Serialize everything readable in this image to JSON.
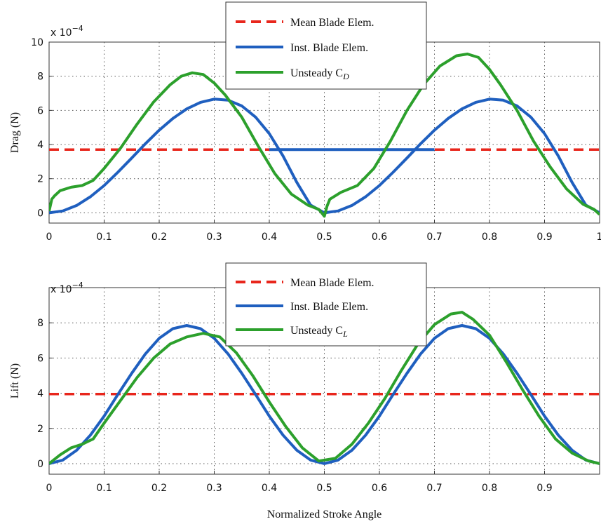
{
  "chart_data": [
    {
      "type": "line",
      "ylabel": "Drag (N)",
      "xlabel": "",
      "exponent": {
        "base": "x 10",
        "power": "−4"
      },
      "xlim": [
        0,
        1
      ],
      "ylim": [
        -0.6,
        10
      ],
      "xticks": [
        0,
        0.1,
        0.2,
        0.3,
        0.4,
        0.5,
        0.6,
        0.7,
        0.8,
        0.9,
        1
      ],
      "xtick_labels": [
        "0",
        "0.1",
        "0.2",
        "0.3",
        "0.4",
        "0.5",
        "0.6",
        "0.7",
        "0.8",
        "0.9",
        "1"
      ],
      "yticks": [
        0,
        2,
        4,
        6,
        8,
        10
      ],
      "ytick_labels": [
        "0",
        "2",
        "4",
        "6",
        "8",
        "10"
      ],
      "grid": true,
      "legend_position": "top-center",
      "legend": [
        {
          "label": "Mean Blade Elem.",
          "sub": ""
        },
        {
          "label": "Inst. Blade Elem.",
          "sub": ""
        },
        {
          "label": "Unsteady  C",
          "sub": "D"
        }
      ],
      "series": [
        {
          "color": "#e8261c",
          "style": "dashed",
          "x": [
            0,
            1
          ],
          "y": [
            3.7,
            3.7
          ]
        },
        {
          "color": "#1f5fbf",
          "style": "solid",
          "x": [
            0,
            0.025,
            0.05,
            0.075,
            0.1,
            0.125,
            0.15,
            0.175,
            0.2,
            0.225,
            0.25,
            0.275,
            0.3,
            0.325,
            0.35,
            0.375,
            0.4,
            0.425,
            0.45,
            0.475,
            0.5,
            0.525,
            0.55,
            0.575,
            0.6,
            0.625,
            0.65,
            0.675,
            0.7,
            0.725,
            0.75,
            0.775,
            0.8,
            0.825,
            0.85,
            0.875,
            0.9,
            0.925,
            0.95,
            0.975,
            1.0
          ],
          "y": [
            0.0,
            0.11,
            0.43,
            0.94,
            1.6,
            2.38,
            3.21,
            4.05,
            4.84,
            5.53,
            6.09,
            6.47,
            6.66,
            6.6,
            6.26,
            5.61,
            4.64,
            3.33,
            1.78,
            0.45,
            0.0,
            0.11,
            0.43,
            0.94,
            1.6,
            2.38,
            3.21,
            4.05,
            4.84,
            5.53,
            6.09,
            6.47,
            6.66,
            6.6,
            6.26,
            5.61,
            4.64,
            3.33,
            1.78,
            0.45,
            0.0
          ]
        },
        {
          "color": "#1f5fbf",
          "style": "solid",
          "x": [
            0.4,
            0.7
          ],
          "y": [
            3.7,
            3.7
          ]
        },
        {
          "color": "#2ca02c",
          "style": "solid",
          "x": [
            0,
            0.005,
            0.01,
            0.02,
            0.04,
            0.06,
            0.08,
            0.1,
            0.13,
            0.16,
            0.19,
            0.22,
            0.24,
            0.26,
            0.28,
            0.3,
            0.32,
            0.35,
            0.38,
            0.41,
            0.44,
            0.47,
            0.49,
            0.495,
            0.5,
            0.505,
            0.51,
            0.53,
            0.56,
            0.59,
            0.62,
            0.65,
            0.68,
            0.71,
            0.74,
            0.76,
            0.78,
            0.8,
            0.82,
            0.85,
            0.88,
            0.91,
            0.94,
            0.97,
            0.99,
            1.0
          ],
          "y": [
            0.1,
            0.8,
            1.0,
            1.3,
            1.5,
            1.6,
            1.9,
            2.6,
            3.8,
            5.2,
            6.5,
            7.5,
            8.0,
            8.2,
            8.1,
            7.6,
            6.9,
            5.6,
            3.9,
            2.3,
            1.1,
            0.45,
            0.2,
            0.0,
            -0.2,
            0.4,
            0.8,
            1.2,
            1.6,
            2.6,
            4.2,
            6.0,
            7.5,
            8.6,
            9.2,
            9.3,
            9.1,
            8.4,
            7.5,
            6.0,
            4.2,
            2.7,
            1.4,
            0.5,
            0.2,
            -0.1
          ]
        }
      ]
    },
    {
      "type": "line",
      "ylabel": "Lift (N)",
      "xlabel": "Normalized Stroke Angle",
      "exponent": {
        "base": "x 10",
        "power": "−4"
      },
      "xlim": [
        0,
        1
      ],
      "ylim": [
        -0.6,
        10
      ],
      "xticks": [
        0,
        0.1,
        0.2,
        0.3,
        0.4,
        0.5,
        0.6,
        0.7,
        0.8,
        0.9
      ],
      "xtick_labels": [
        "0",
        "0.1",
        "0.2",
        "0.3",
        "0.4",
        "0.5",
        "0.6",
        "0.7",
        "0.8",
        "0.9"
      ],
      "yticks": [
        0,
        2,
        4,
        6,
        8
      ],
      "ytick_labels": [
        "0",
        "2",
        "4",
        "6",
        "8"
      ],
      "grid": true,
      "legend_position": "top-center",
      "legend": [
        {
          "label": "Mean Blade Elem.",
          "sub": ""
        },
        {
          "label": "Inst. Blade Elem.",
          "sub": ""
        },
        {
          "label": "Unsteady  C",
          "sub": "L"
        }
      ],
      "series": [
        {
          "color": "#e8261c",
          "style": "dashed",
          "x": [
            0,
            1
          ],
          "y": [
            3.95,
            3.95
          ]
        },
        {
          "color": "#1f5fbf",
          "style": "solid",
          "x": [
            0,
            0.025,
            0.05,
            0.075,
            0.1,
            0.125,
            0.15,
            0.175,
            0.2,
            0.225,
            0.25,
            0.275,
            0.3,
            0.325,
            0.35,
            0.375,
            0.4,
            0.425,
            0.45,
            0.475,
            0.5,
            0.525,
            0.55,
            0.575,
            0.6,
            0.625,
            0.65,
            0.675,
            0.7,
            0.725,
            0.75,
            0.775,
            0.8,
            0.825,
            0.85,
            0.875,
            0.9,
            0.925,
            0.95,
            0.975,
            1.0
          ],
          "y": [
            0.0,
            0.2,
            0.76,
            1.62,
            2.7,
            3.93,
            5.13,
            6.24,
            7.12,
            7.67,
            7.85,
            7.67,
            7.12,
            6.24,
            5.13,
            3.93,
            2.7,
            1.62,
            0.76,
            0.2,
            0.0,
            0.2,
            0.76,
            1.62,
            2.7,
            3.93,
            5.13,
            6.24,
            7.12,
            7.67,
            7.85,
            7.67,
            7.12,
            6.24,
            5.13,
            3.93,
            2.7,
            1.62,
            0.76,
            0.2,
            0.0
          ]
        },
        {
          "color": "#2ca02c",
          "style": "solid",
          "x": [
            0,
            0.02,
            0.04,
            0.06,
            0.08,
            0.1,
            0.13,
            0.16,
            0.19,
            0.22,
            0.25,
            0.28,
            0.31,
            0.34,
            0.37,
            0.4,
            0.43,
            0.46,
            0.49,
            0.52,
            0.55,
            0.58,
            0.61,
            0.64,
            0.67,
            0.7,
            0.73,
            0.75,
            0.77,
            0.8,
            0.83,
            0.86,
            0.89,
            0.92,
            0.95,
            0.98,
            1.0
          ],
          "y": [
            0.0,
            0.5,
            0.9,
            1.1,
            1.4,
            2.3,
            3.6,
            4.9,
            6.0,
            6.8,
            7.2,
            7.4,
            7.2,
            6.3,
            5.0,
            3.5,
            2.1,
            0.9,
            0.15,
            0.3,
            1.1,
            2.3,
            3.7,
            5.3,
            6.8,
            7.9,
            8.5,
            8.6,
            8.2,
            7.3,
            5.8,
            4.2,
            2.7,
            1.4,
            0.6,
            0.15,
            0.0
          ]
        }
      ]
    }
  ]
}
